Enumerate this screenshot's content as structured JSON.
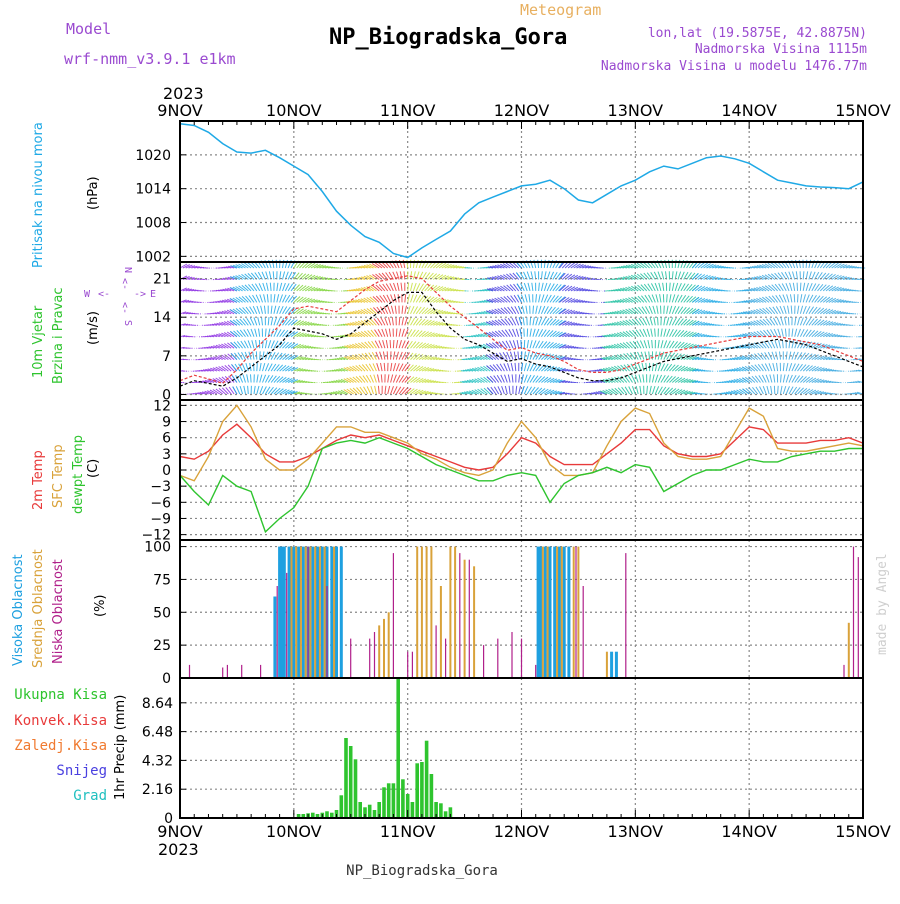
{
  "header": {
    "model_label": "Model",
    "model_name": "wrf-nmm_v3.9.1 e1km",
    "meteogram_label": "Meteogram",
    "title": "NP_Biogradska_Gora",
    "coords": "lon,lat (19.5875E, 42.8875N)",
    "altitude": "Nadmorska Visina 1115m",
    "model_altitude": "Nadmorska Visina u modelu 1476.77m",
    "year": "2023",
    "footer_station": "NP_Biogradska_Gora",
    "watermark": "made by Angel"
  },
  "colors": {
    "pressure": "#1fa9e6",
    "temp2m": "#e83a3a",
    "sfc": "#d9a23a",
    "dew": "#2ec42e",
    "high_cloud": "#1ea0e0",
    "mid_cloud": "#d9a23a",
    "low_cloud": "#b0208a",
    "precip": "#2ec42e",
    "conv": "#e83a3a",
    "frozen": "#f07a30",
    "snow": "#4a40e0",
    "grad": "#20c0c0",
    "model_purple": "#9a4ad0",
    "meteogram_orange": "#e8b060"
  },
  "chart_data": [
    {
      "type": "line",
      "name": "pressure",
      "ylabel_left": "Pritisak na nivou mora",
      "ylabel_unit": "(hPa)",
      "ylim": [
        1001,
        1026
      ],
      "yticks": [
        "1002",
        "1008",
        "1014",
        "1020"
      ],
      "xlim": [
        0,
        144
      ],
      "xticks_top": [
        "9NOV",
        "10NOV",
        "11NOV",
        "12NOV",
        "13NOV",
        "14NOV",
        "15NOV"
      ],
      "grid": true,
      "x": [
        0,
        3,
        6,
        9,
        12,
        15,
        18,
        21,
        24,
        27,
        30,
        33,
        36,
        39,
        42,
        45,
        48,
        51,
        54,
        57,
        60,
        63,
        66,
        69,
        72,
        75,
        78,
        81,
        84,
        87,
        90,
        93,
        96,
        99,
        102,
        105,
        108,
        111,
        114,
        117,
        120,
        123,
        126,
        129,
        132,
        135,
        138,
        141,
        144
      ],
      "values": [
        1025.5,
        1025.2,
        1024.0,
        1022.0,
        1020.5,
        1020.3,
        1020.8,
        1019.5,
        1018.0,
        1016.5,
        1013.5,
        1010.0,
        1007.5,
        1005.5,
        1004.5,
        1002.5,
        1001.8,
        1003.5,
        1005.0,
        1006.5,
        1009.5,
        1011.5,
        1012.5,
        1013.5,
        1014.5,
        1014.8,
        1015.5,
        1014.0,
        1012.0,
        1011.5,
        1013.0,
        1014.5,
        1015.5,
        1017.0,
        1018.0,
        1017.5,
        1018.5,
        1019.5,
        1019.8,
        1019.3,
        1018.5,
        1017.0,
        1015.5,
        1015.0,
        1014.5,
        1014.3,
        1014.2,
        1014.0,
        1015.2
      ]
    },
    {
      "type": "line",
      "name": "wind",
      "ylabel_left_1": "10m Vjetar",
      "ylabel_left_2": "Brzina i Pravac",
      "ylabel_unit": "(m/s)",
      "compass_n": "N",
      "compass_w": "W",
      "compass_e": "E",
      "compass_s": "S",
      "ylim": [
        -1,
        24
      ],
      "yticks": [
        "0",
        "7",
        "14",
        "21"
      ],
      "grid": true,
      "x": [
        0,
        3,
        6,
        9,
        12,
        15,
        18,
        21,
        24,
        27,
        30,
        33,
        36,
        39,
        42,
        45,
        48,
        51,
        54,
        57,
        60,
        63,
        66,
        69,
        72,
        75,
        78,
        81,
        84,
        87,
        90,
        93,
        96,
        99,
        102,
        105,
        108,
        111,
        114,
        117,
        120,
        123,
        126,
        129,
        132,
        135,
        138,
        141,
        144
      ],
      "speed": [
        1.5,
        2.5,
        2.0,
        1.5,
        3.0,
        5.0,
        7.0,
        9.0,
        12.0,
        11.5,
        11.0,
        10.0,
        11.0,
        13.0,
        15.0,
        17.0,
        18.5,
        18.5,
        15.0,
        12.0,
        10.0,
        9.0,
        7.5,
        6.0,
        6.5,
        5.5,
        5.0,
        4.0,
        3.0,
        2.5,
        2.5,
        3.0,
        4.0,
        5.0,
        6.0,
        6.5,
        7.0,
        7.5,
        8.0,
        8.5,
        9.0,
        9.5,
        10.0,
        9.5,
        9.0,
        8.0,
        7.0,
        6.0,
        5.0
      ],
      "gust": [
        2.5,
        3.5,
        2.8,
        2.0,
        4.5,
        7.5,
        10.0,
        12.5,
        15.5,
        16.0,
        15.5,
        15.0,
        17.0,
        19.0,
        20.5,
        21.0,
        21.5,
        21.0,
        18.5,
        16.0,
        14.0,
        12.0,
        10.0,
        8.0,
        8.5,
        7.5,
        7.0,
        6.0,
        4.5,
        4.0,
        4.0,
        4.5,
        5.5,
        6.5,
        7.5,
        8.0,
        8.5,
        9.0,
        9.5,
        10.0,
        10.5,
        10.5,
        10.5,
        10.0,
        9.5,
        9.0,
        8.0,
        7.0,
        6.0
      ]
    },
    {
      "type": "line",
      "name": "temperature",
      "ylabel_left_1": "2m Temp",
      "ylabel_left_2": "SFC Temp",
      "ylabel_left_3": "dewpt Temp",
      "ylabel_unit": "(C)",
      "ylim": [
        -13,
        13
      ],
      "yticks": [
        "12",
        "9",
        "6",
        "3",
        "0",
        "−3",
        "−6",
        "−9",
        "−12"
      ],
      "grid": true,
      "x": [
        0,
        3,
        6,
        9,
        12,
        15,
        18,
        21,
        24,
        27,
        30,
        33,
        36,
        39,
        42,
        45,
        48,
        51,
        54,
        57,
        60,
        63,
        66,
        69,
        72,
        75,
        78,
        81,
        84,
        87,
        90,
        93,
        96,
        99,
        102,
        105,
        108,
        111,
        114,
        117,
        120,
        123,
        126,
        129,
        132,
        135,
        138,
        141,
        144
      ],
      "series": [
        {
          "name": "2m Temp",
          "values": [
            2.5,
            2.0,
            3.5,
            6.5,
            8.5,
            6.0,
            3.0,
            1.5,
            1.5,
            2.5,
            4.0,
            5.5,
            6.5,
            6.0,
            6.5,
            5.5,
            4.5,
            3.5,
            2.5,
            1.5,
            0.5,
            0.0,
            0.5,
            3.0,
            6.0,
            5.0,
            2.5,
            1.0,
            1.0,
            1.0,
            3.0,
            5.0,
            7.5,
            7.5,
            4.5,
            3.0,
            2.5,
            2.5,
            3.0,
            5.5,
            8.0,
            7.5,
            5.0,
            5.0,
            5.0,
            5.5,
            5.5,
            6.0,
            5.0
          ]
        },
        {
          "name": "SFC Temp",
          "values": [
            -1.0,
            -2.0,
            2.5,
            9.0,
            12.0,
            8.0,
            2.0,
            0.0,
            0.0,
            2.0,
            5.0,
            8.0,
            8.0,
            7.0,
            7.0,
            6.0,
            5.0,
            3.0,
            2.0,
            0.5,
            -0.5,
            -1.0,
            0.0,
            5.0,
            9.0,
            6.0,
            1.0,
            -1.0,
            -1.0,
            -0.5,
            4.5,
            9.0,
            11.5,
            10.5,
            5.0,
            2.5,
            2.0,
            2.0,
            2.5,
            7.0,
            11.5,
            10.0,
            4.0,
            3.5,
            3.5,
            4.0,
            4.5,
            5.0,
            4.5
          ]
        },
        {
          "name": "dewpt Temp",
          "values": [
            -1.0,
            -4.0,
            -6.5,
            -1.0,
            -3.0,
            -4.0,
            -11.5,
            -9.0,
            -7.0,
            -3.0,
            4.0,
            5.0,
            5.5,
            5.0,
            6.0,
            5.0,
            4.0,
            2.5,
            1.0,
            0.0,
            -1.0,
            -2.0,
            -2.0,
            -1.0,
            -0.5,
            -1.0,
            -6.0,
            -2.5,
            -1.0,
            -0.5,
            0.5,
            -0.5,
            1.0,
            0.5,
            -4.0,
            -2.5,
            -1.0,
            0.0,
            0.0,
            1.0,
            2.0,
            1.5,
            1.5,
            2.5,
            3.0,
            3.5,
            3.5,
            4.0,
            4.0
          ]
        }
      ]
    },
    {
      "type": "bar",
      "name": "clouds",
      "ylabel_left_1": "Visoka Oblacnost",
      "ylabel_left_2": "Srednja Oblacnost",
      "ylabel_left_3": "Niska Oblacnost",
      "ylabel_unit": "(%)",
      "ylim": [
        0,
        105
      ],
      "yticks": [
        "0",
        "25",
        "50",
        "75",
        "100"
      ],
      "grid": true,
      "series": [
        {
          "name": "Visoka Oblacnost",
          "x": [
            20,
            21,
            21.5,
            22,
            23,
            24,
            25,
            26,
            27,
            28,
            29,
            30,
            31,
            32,
            33,
            34,
            75.5,
            76,
            77,
            78,
            79,
            80,
            81,
            82,
            91,
            92
          ],
          "values": [
            62,
            100,
            100,
            100,
            100,
            100,
            100,
            100,
            100,
            100,
            100,
            100,
            100,
            100,
            100,
            100,
            100,
            100,
            100,
            100,
            100,
            100,
            100,
            100,
            20,
            20
          ]
        },
        {
          "name": "Srednja Oblacnost",
          "x": [
            23.5,
            24.5,
            25.5,
            26.5,
            27.5,
            28.5,
            29.5,
            30.5,
            32.5,
            42,
            43,
            44,
            50,
            51,
            52,
            53,
            55,
            57,
            58,
            60,
            62,
            76.5,
            77.5,
            79.5,
            80.5,
            83,
            84,
            90,
            141
          ],
          "values": [
            100,
            100,
            100,
            100,
            100,
            100,
            100,
            100,
            100,
            40,
            45,
            50,
            100,
            100,
            100,
            100,
            70,
            100,
            100,
            90,
            85,
            100,
            100,
            100,
            100,
            100,
            100,
            20,
            42
          ]
        },
        {
          "name": "Niska Oblacnost",
          "x": [
            2,
            9,
            10,
            13,
            17,
            20.5,
            22.5,
            27,
            31,
            36,
            40,
            41,
            45,
            48,
            49,
            54,
            56,
            59,
            61,
            64,
            67,
            70,
            72,
            75,
            83.5,
            85,
            94,
            140,
            142,
            143
          ],
          "values": [
            10,
            8,
            10,
            10,
            10,
            70,
            80,
            100,
            70,
            30,
            30,
            35,
            95,
            20,
            20,
            40,
            30,
            95,
            90,
            25,
            30,
            35,
            30,
            10,
            100,
            70,
            95,
            10,
            100,
            92
          ]
        }
      ]
    },
    {
      "type": "bar",
      "name": "precip",
      "legend": [
        "Ukupna Kisa",
        "Konvek.Kisa",
        "Zaledj.Kisa",
        "Snijeg",
        "Grad"
      ],
      "ylabel_unit": "1hr Precip (mm)",
      "ylim": [
        0,
        10.5
      ],
      "yticks": [
        "0",
        "2.16",
        "4.32",
        "6.48",
        "8.64"
      ],
      "xticks_bottom": [
        "9NOV",
        "10NOV",
        "11NOV",
        "12NOV",
        "13NOV",
        "14NOV",
        "15NOV"
      ],
      "grid": true,
      "x": [
        25,
        26,
        27,
        28,
        29,
        30,
        31,
        32,
        33,
        34,
        35,
        36,
        37,
        38,
        39,
        40,
        41,
        42,
        43,
        44,
        45,
        46,
        47,
        48,
        49,
        50,
        51,
        52,
        53,
        54,
        55,
        56,
        57
      ],
      "values": [
        0.3,
        0.3,
        0.35,
        0.4,
        0.3,
        0.4,
        0.5,
        0.4,
        0.6,
        1.7,
        6.0,
        5.4,
        4.4,
        1.2,
        0.8,
        1.0,
        0.6,
        1.2,
        2.3,
        2.6,
        2.6,
        10.5,
        2.9,
        1.8,
        1.2,
        4.1,
        4.2,
        5.8,
        3.3,
        1.2,
        1.1,
        0.5,
        0.8
      ]
    }
  ]
}
